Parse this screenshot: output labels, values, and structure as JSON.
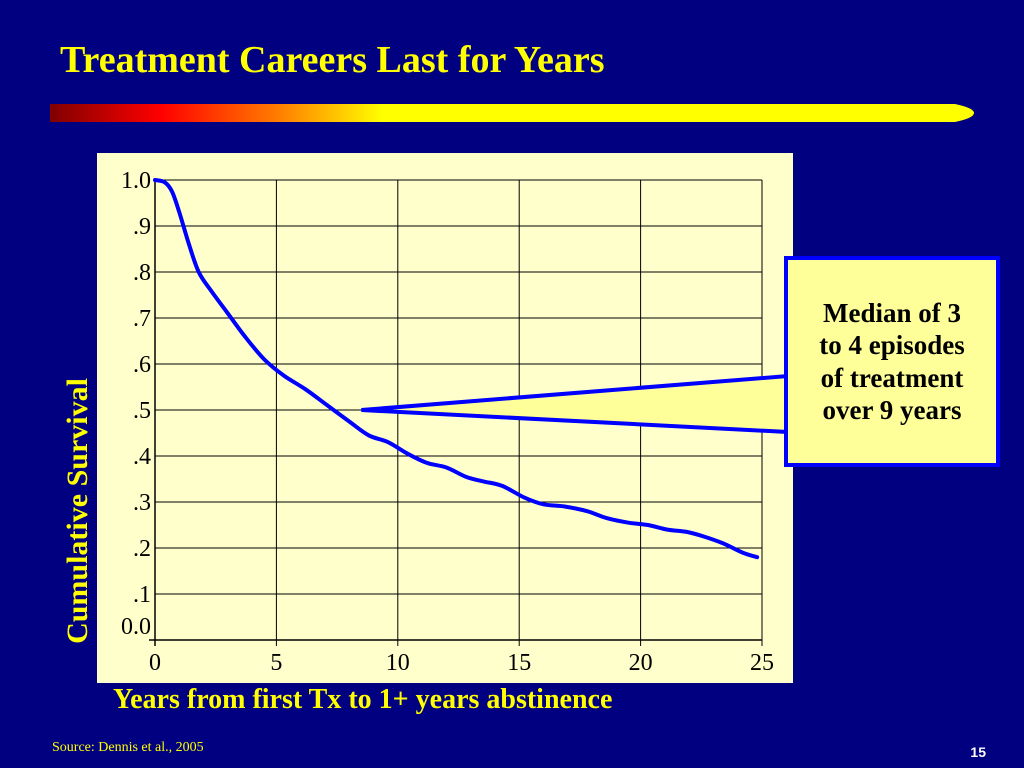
{
  "slide": {
    "title": "Treatment Careers Last for Years",
    "source": "Source: Dennis et al., 2005",
    "page_number": "15",
    "callout_text": "Median of 3\nto 4 episodes\nof treatment\nover 9 years"
  },
  "colors": {
    "background": "#000080",
    "title": "#FFFF00",
    "plot_background": "#FFFFCC",
    "curve": "#0000FF",
    "callout_fill": "#FFFF99",
    "callout_border": "#0000FF",
    "bar_gradient": [
      "#800000",
      "#FF0000",
      "#FF8000",
      "#FFFF00"
    ]
  },
  "chart_data": {
    "type": "line",
    "title": "",
    "xlabel": "Years from first Tx to 1+ years abstinence",
    "ylabel": "Cumulative Survival",
    "xlim": [
      0,
      25
    ],
    "ylim": [
      0,
      1
    ],
    "grid": true,
    "x_ticks": [
      0,
      5,
      10,
      15,
      20,
      25
    ],
    "x_tick_labels": [
      "0",
      "5",
      "10",
      "15",
      "20",
      "25"
    ],
    "y_ticks": [
      0,
      0.1,
      0.2,
      0.3,
      0.4,
      0.5,
      0.6,
      0.7,
      0.8,
      0.9,
      1.0
    ],
    "y_tick_labels": [
      "0.0",
      ".1",
      ".2",
      ".3",
      ".4",
      ".5",
      ".6",
      ".7",
      ".8",
      ".9",
      "1.0"
    ],
    "series": [
      {
        "x": [
          0,
          0.4,
          0.7,
          1.0,
          1.4,
          1.8,
          2.3,
          3.0,
          3.7,
          4.5,
          5.3,
          6.2,
          7.1,
          8.0,
          8.8,
          9.6,
          10.4,
          11.2,
          12.0,
          12.8,
          13.5,
          14.3,
          15.2,
          16.0,
          16.9,
          17.8,
          18.6,
          19.5,
          20.3,
          21.1,
          21.9,
          22.6,
          23.4,
          24.2,
          24.8
        ],
        "y": [
          1.0,
          0.995,
          0.975,
          0.93,
          0.86,
          0.8,
          0.76,
          0.71,
          0.66,
          0.61,
          0.575,
          0.545,
          0.51,
          0.475,
          0.445,
          0.43,
          0.405,
          0.385,
          0.375,
          0.355,
          0.345,
          0.335,
          0.31,
          0.295,
          0.29,
          0.28,
          0.265,
          0.255,
          0.25,
          0.24,
          0.235,
          0.225,
          0.21,
          0.19,
          0.18
        ]
      }
    ],
    "annotation_point": {
      "x": 8.5,
      "y": 0.5
    }
  }
}
